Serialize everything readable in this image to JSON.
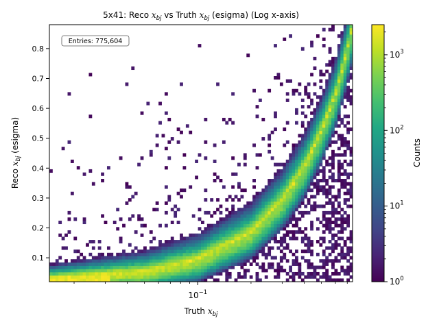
{
  "chart_data": {
    "type": "heatmap",
    "title": {
      "prefix": "5x41: Reco ",
      "var": "x",
      "sub": "bj",
      "mid": " vs Truth ",
      "var2": "x",
      "sub2": "bj",
      "suffix": " (esigma) (Log x-axis)"
    },
    "xlabel": {
      "prefix": "Truth ",
      "var": "x",
      "sub": "bj"
    },
    "ylabel": {
      "prefix": "Reco ",
      "var": "x",
      "sub": "bj",
      "suffix": " (esigma)"
    },
    "x_scale": "log",
    "xlim": [
      0.0145,
      0.75
    ],
    "ylim": [
      0.02,
      0.88
    ],
    "x_tick": {
      "value": 0.1,
      "base": "10",
      "exp": "−1"
    },
    "y_ticks": [
      0.1,
      0.2,
      0.3,
      0.4,
      0.5,
      0.6,
      0.7,
      0.8
    ],
    "y_tick_labels": [
      "0.1",
      "0.2",
      "0.3",
      "0.4",
      "0.5",
      "0.6",
      "0.7",
      "0.8"
    ],
    "colorbar": {
      "label": "Counts",
      "scale": "log",
      "range": [
        1,
        2500
      ],
      "colormap": "viridis",
      "ticks": [
        {
          "value": 1,
          "base": "10",
          "exp": "0"
        },
        {
          "value": 10,
          "base": "10",
          "exp": "1"
        },
        {
          "value": 100,
          "base": "10",
          "exp": "2"
        },
        {
          "value": 1000,
          "base": "10",
          "exp": "3"
        }
      ]
    },
    "ridge": {
      "description_points_x": [
        0.015,
        0.05,
        0.1,
        0.2,
        0.3,
        0.4,
        0.5,
        0.6,
        0.7,
        0.75
      ],
      "description_points_y": [
        0.035,
        0.055,
        0.095,
        0.185,
        0.29,
        0.4,
        0.52,
        0.64,
        0.79,
        0.87
      ]
    },
    "annotation": {
      "label": "Entries: ",
      "value": "775,604"
    }
  }
}
